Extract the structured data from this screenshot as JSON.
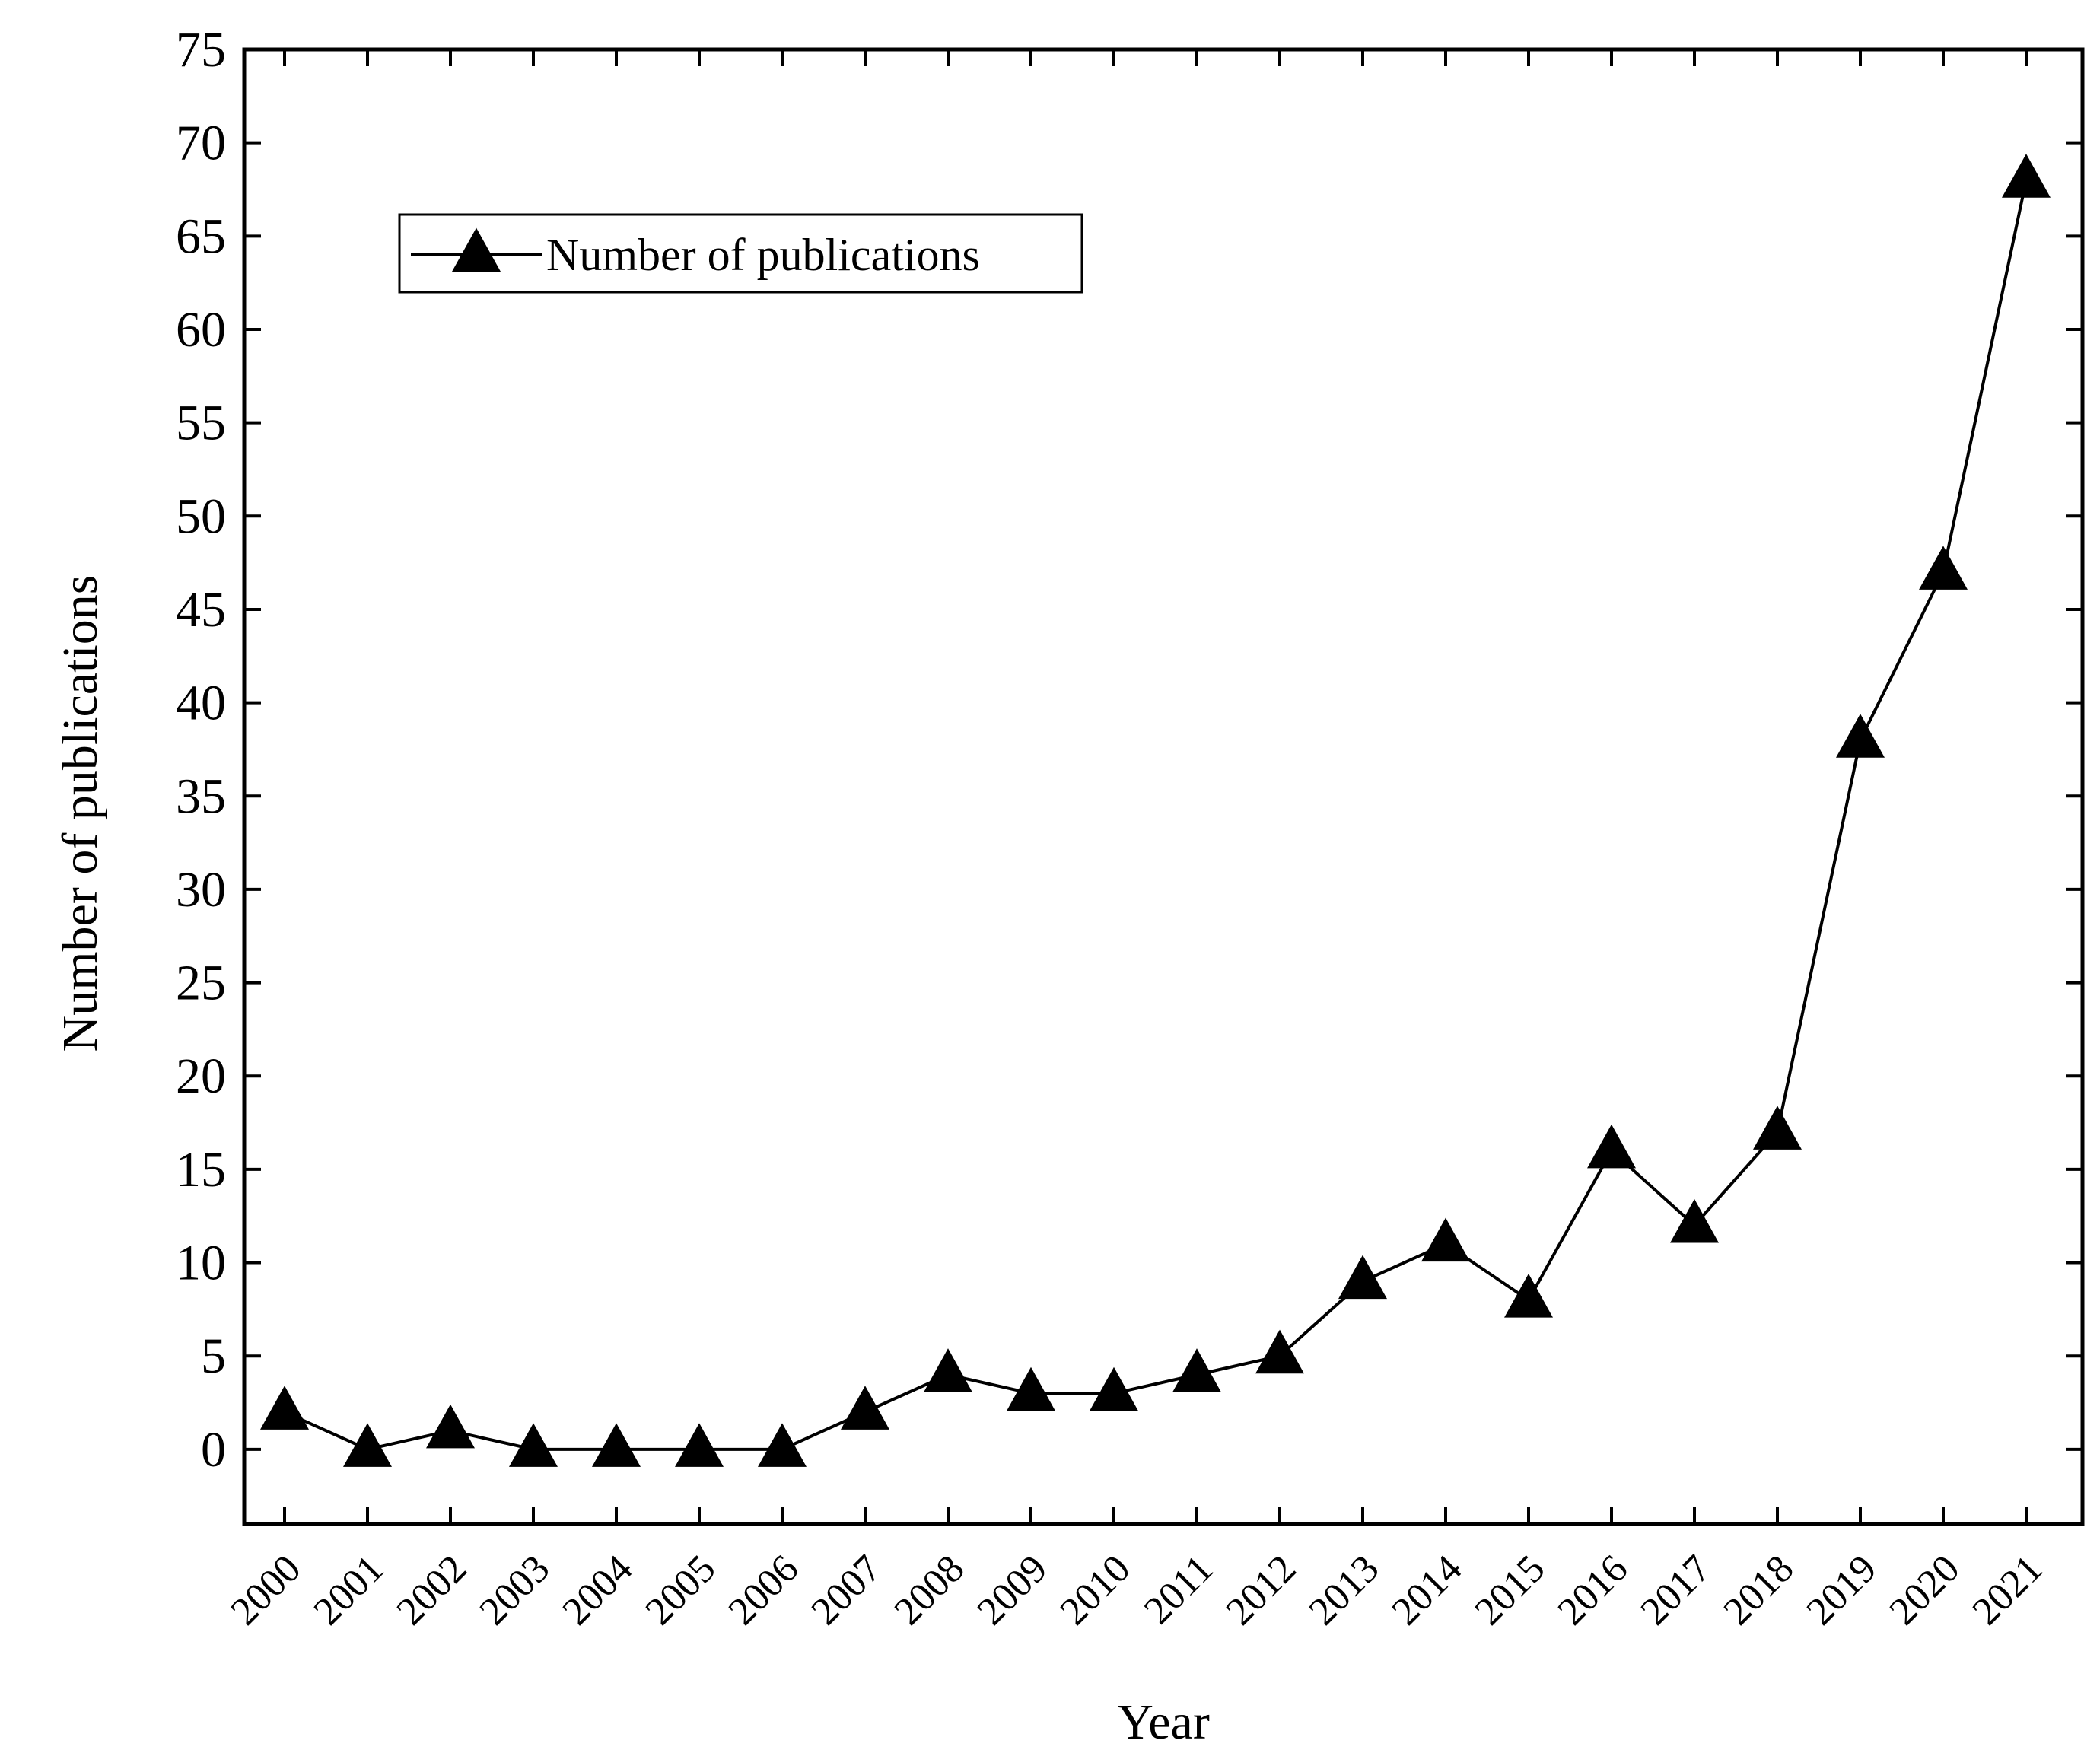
{
  "chart_data": {
    "type": "line",
    "title": "",
    "xlabel": "Year",
    "ylabel": "Number of publications",
    "ylim": [
      -4,
      75
    ],
    "yticks": [
      0,
      5,
      10,
      15,
      20,
      25,
      30,
      35,
      40,
      45,
      50,
      55,
      60,
      65,
      70,
      75
    ],
    "ytick_labels": [
      "0",
      "5",
      "10",
      "15",
      "20",
      "25",
      "30",
      "35",
      "40",
      "45",
      "50",
      "55",
      "60",
      "65",
      "70",
      "75"
    ],
    "categories": [
      "2000",
      "2001",
      "2002",
      "2003",
      "2004",
      "2005",
      "2006",
      "2007",
      "2008",
      "2009",
      "2010",
      "2011",
      "2012",
      "2013",
      "2014",
      "2015",
      "2016",
      "2017",
      "2018",
      "2019",
      "2020",
      "2021"
    ],
    "series": [
      {
        "name": "Number of publications",
        "marker": "triangle",
        "color": "#000000",
        "values": [
          2,
          0,
          1,
          0,
          0,
          0,
          0,
          2,
          4,
          3,
          3,
          4,
          5,
          9,
          11,
          8,
          16,
          12,
          17,
          38,
          47,
          68
        ]
      }
    ],
    "grid": false,
    "legend_position": "top-left",
    "x_tick_rotation": -45
  }
}
